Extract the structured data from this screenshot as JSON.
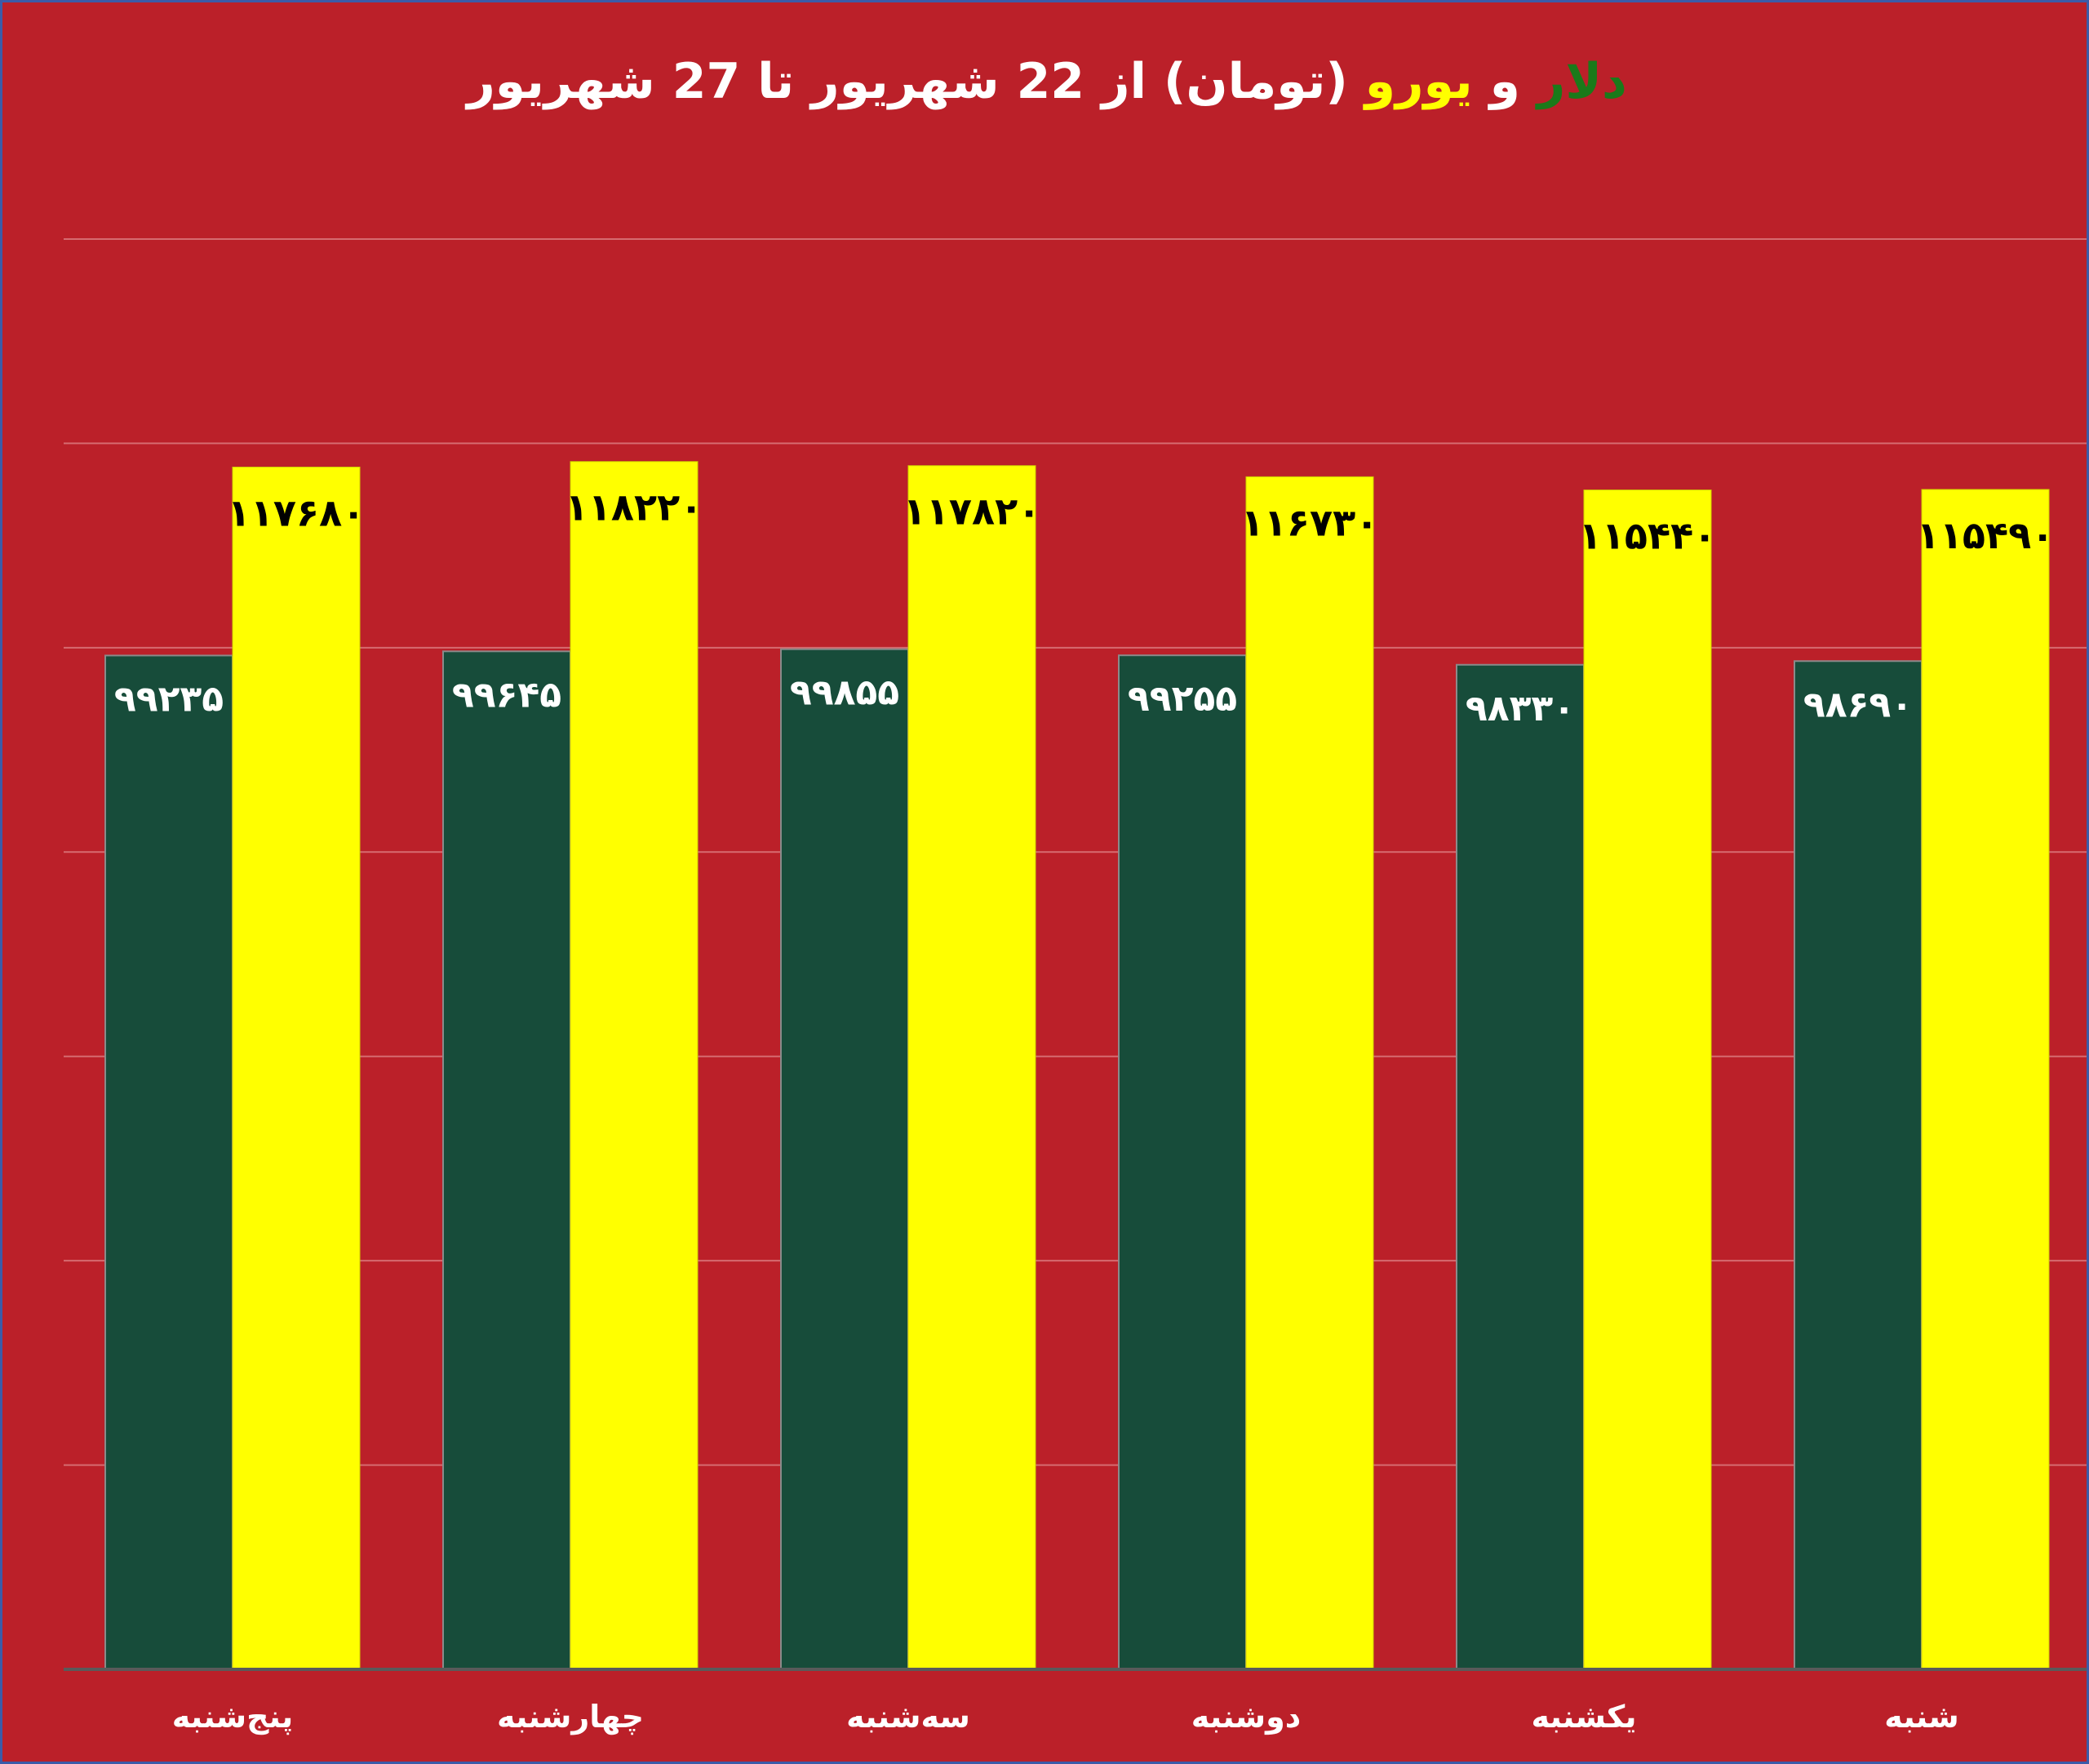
{
  "title": {
    "dollar": "دلار",
    "and": " و ",
    "euro": "یورو",
    "rest": " (تومان) از 22 شهریور تا 27 شهریور"
  },
  "colors": {
    "background": "#BB2029",
    "dollar": "#174c3a",
    "euro": "#ffff00",
    "title_dollar": "#1a7a1a",
    "title_euro": "#ffff00",
    "title_text": "#ffffff"
  },
  "chart_data": {
    "type": "bar",
    "categories": [
      "پنج‌شنبه",
      "چهارشنبه",
      "سه‌شنبه",
      "دوشنبه",
      "یکشنبه",
      "شنبه"
    ],
    "series": [
      {
        "key": "dollar",
        "values": [
          99235,
          99645,
          99855,
          99255,
          98330,
          98690
        ],
        "labels": [
          "۹۹۲۳۵",
          "۹۹۶۴۵",
          "۹۹۸۵۵",
          "۹۹۲۵۵",
          "۹۸۳۳۰",
          "۹۸۶۹۰"
        ]
      },
      {
        "key": "euro",
        "values": [
          117680,
          118220,
          117820,
          116730,
          115440,
          115490
        ],
        "labels": [
          "۱۱۷۶۸۰",
          "۱۱۸۲۲۰",
          "۱۱۷۸۲۰",
          "۱۱۶۷۳۰",
          "۱۱۵۴۴۰",
          "۱۱۵۴۹۰"
        ]
      }
    ],
    "ylim": [
      0,
      140000
    ],
    "grid": true,
    "legend": "none"
  }
}
